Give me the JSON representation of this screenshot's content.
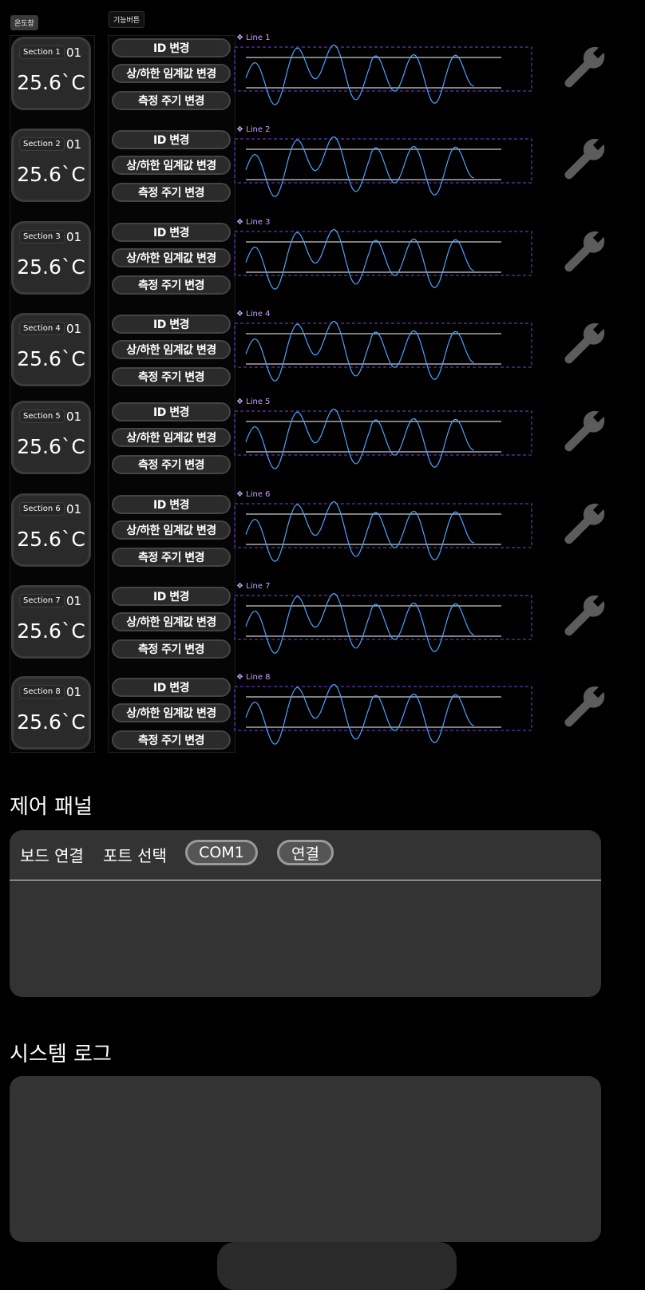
{
  "headers": {
    "temp_window": "온도창",
    "func_buttons": "기능버튼"
  },
  "sections": [
    {
      "label": "Section 1",
      "id": "01",
      "temp": "25.6`C",
      "line": "Line 1"
    },
    {
      "label": "Section 2",
      "id": "01",
      "temp": "25.6`C",
      "line": "Line 2"
    },
    {
      "label": "Section 3",
      "id": "01",
      "temp": "25.6`C",
      "line": "Line 3"
    },
    {
      "label": "Section 4",
      "id": "01",
      "temp": "25.6`C",
      "line": "Line 4"
    },
    {
      "label": "Section 5",
      "id": "01",
      "temp": "25.6`C",
      "line": "Line 5"
    },
    {
      "label": "Section 6",
      "id": "01",
      "temp": "25.6`C",
      "line": "Line 6"
    },
    {
      "label": "Section 7",
      "id": "01",
      "temp": "25.6`C",
      "line": "Line 7"
    },
    {
      "label": "Section 8",
      "id": "01",
      "temp": "25.6`C",
      "line": "Line 8"
    }
  ],
  "buttons": {
    "change_id": "ID 변경",
    "change_threshold": "상/하한 임계값 변경",
    "change_interval": "측정 주기 변경"
  },
  "line_prefix_icon": "❖",
  "settings_icon": "wrench-icon",
  "control_panel": {
    "title": "제어 패널",
    "board_connect": "보드 연결",
    "port_select": "포트 선택",
    "port_value": "COM1",
    "connect_button": "연결"
  },
  "system_log": {
    "title": "시스템 로그"
  },
  "colors": {
    "graph_line": "#4da3ff",
    "graph_box": "#7b3fe4",
    "threshold_line": "#ffffff",
    "background": "#000000",
    "card": "#2a2a2a"
  }
}
